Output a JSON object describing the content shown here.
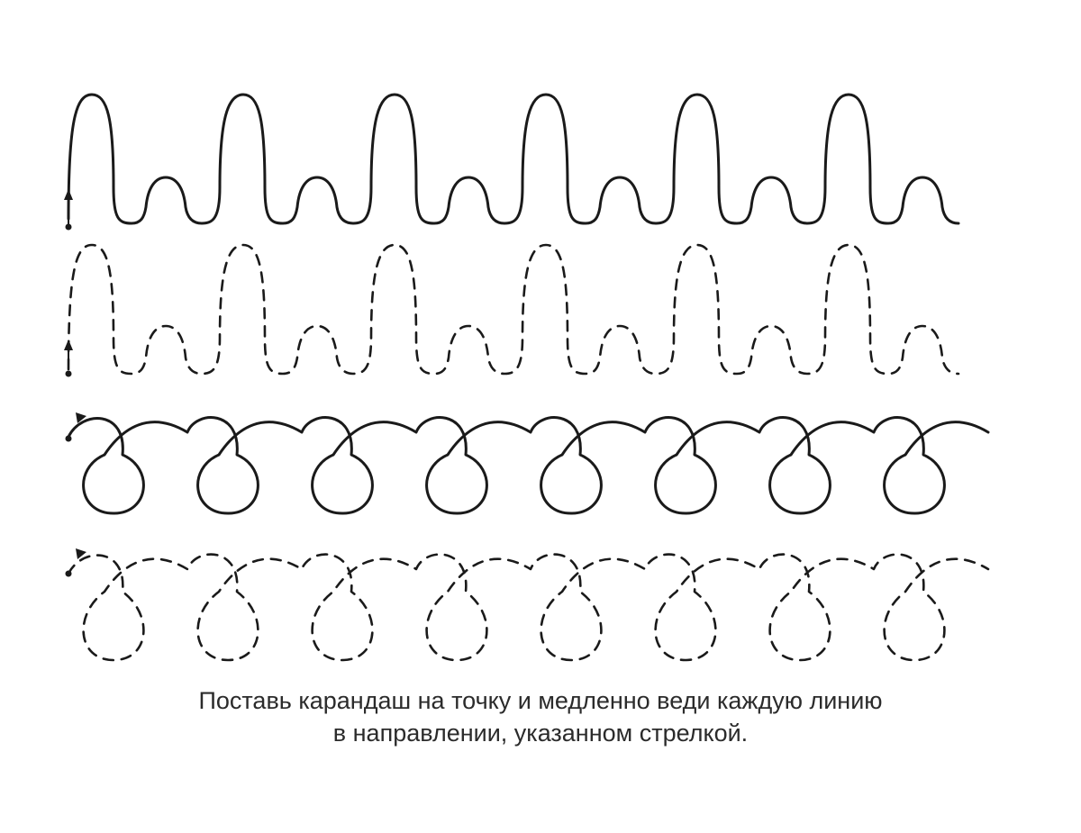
{
  "instruction": {
    "line1": "Поставь карандаш на точку и медленно веди каждую линию",
    "line2": "в направлении, указанном стрелкой."
  },
  "rows": [
    {
      "pattern": "tall-and-short-arches",
      "style": "solid",
      "repeats": 6
    },
    {
      "pattern": "tall-and-short-arches",
      "style": "dashed",
      "repeats": 6
    },
    {
      "pattern": "loops",
      "style": "solid",
      "repeats": 8
    },
    {
      "pattern": "loops",
      "style": "dashed",
      "repeats": 8
    }
  ],
  "colors": {
    "ink": "#1a1a1a",
    "text": "#2b2b2b",
    "background": "#ffffff"
  },
  "icons": [
    "start-dot",
    "direction-arrow"
  ]
}
